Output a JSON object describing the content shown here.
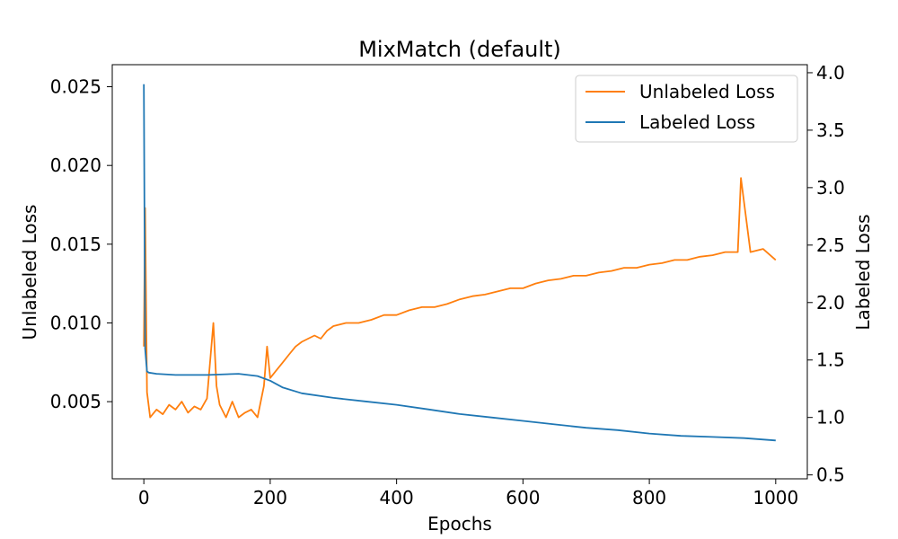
{
  "chart_data": {
    "type": "line",
    "title": "MixMatch (default)",
    "xlabel": "Epochs",
    "ylabel_left": "Unlabeled Loss",
    "ylabel_right": "Labeled Loss",
    "xlim": [
      -50,
      1050
    ],
    "ylim_left": [
      0.0001,
      0.0264
    ],
    "ylim_right": [
      0.466,
      4.07
    ],
    "x_ticks": [
      0,
      200,
      400,
      600,
      800,
      1000
    ],
    "y_ticks_left": [
      0.005,
      0.01,
      0.015,
      0.02,
      0.025
    ],
    "y_ticks_right": [
      0.5,
      1.0,
      1.5,
      2.0,
      2.5,
      3.0,
      3.5,
      4.0
    ],
    "x_tick_labels": [
      "0",
      "200",
      "400",
      "600",
      "800",
      "1000"
    ],
    "y_tick_labels_left": [
      "0.005",
      "0.010",
      "0.015",
      "0.020",
      "0.025"
    ],
    "y_tick_labels_right": [
      "0.5",
      "1.0",
      "1.5",
      "2.0",
      "2.5",
      "3.0",
      "3.5",
      "4.0"
    ],
    "legend_position": "top-right",
    "grid": false,
    "series": [
      {
        "name": "Unlabeled Loss",
        "axis": "left",
        "color": "#ff7f0e",
        "x": [
          0,
          2,
          5,
          10,
          20,
          30,
          40,
          50,
          60,
          70,
          80,
          90,
          100,
          110,
          115,
          120,
          130,
          140,
          150,
          160,
          170,
          180,
          190,
          195,
          200,
          210,
          220,
          230,
          240,
          250,
          260,
          270,
          280,
          290,
          300,
          320,
          340,
          360,
          380,
          400,
          420,
          440,
          460,
          480,
          500,
          520,
          540,
          560,
          580,
          600,
          620,
          640,
          660,
          680,
          700,
          720,
          740,
          760,
          780,
          800,
          820,
          840,
          860,
          880,
          900,
          920,
          940,
          945,
          960,
          980,
          1000
        ],
        "y": [
          0.0085,
          0.0173,
          0.0056,
          0.004,
          0.0045,
          0.0042,
          0.0048,
          0.0045,
          0.005,
          0.0043,
          0.0047,
          0.0045,
          0.0052,
          0.01,
          0.006,
          0.0048,
          0.004,
          0.005,
          0.004,
          0.0043,
          0.0045,
          0.004,
          0.006,
          0.0085,
          0.0065,
          0.007,
          0.0075,
          0.008,
          0.0085,
          0.0088,
          0.009,
          0.0092,
          0.009,
          0.0095,
          0.0098,
          0.01,
          0.01,
          0.0102,
          0.0105,
          0.0105,
          0.0108,
          0.011,
          0.011,
          0.0112,
          0.0115,
          0.0117,
          0.0118,
          0.012,
          0.0122,
          0.0122,
          0.0125,
          0.0127,
          0.0128,
          0.013,
          0.013,
          0.0132,
          0.0133,
          0.0135,
          0.0135,
          0.0137,
          0.0138,
          0.014,
          0.014,
          0.0142,
          0.0143,
          0.0145,
          0.0145,
          0.0192,
          0.0145,
          0.0147,
          0.014
        ]
      },
      {
        "name": "Labeled Loss",
        "axis": "right",
        "color": "#1f77b4",
        "x": [
          0,
          2,
          5,
          8,
          20,
          50,
          100,
          150,
          180,
          200,
          220,
          250,
          300,
          350,
          400,
          450,
          500,
          550,
          600,
          650,
          700,
          750,
          800,
          850,
          900,
          950,
          1000
        ],
        "y": [
          3.9,
          1.6,
          1.4,
          1.39,
          1.38,
          1.37,
          1.37,
          1.38,
          1.36,
          1.32,
          1.26,
          1.21,
          1.17,
          1.14,
          1.11,
          1.07,
          1.03,
          1.0,
          0.97,
          0.94,
          0.91,
          0.89,
          0.86,
          0.84,
          0.83,
          0.82,
          0.8
        ]
      }
    ]
  }
}
